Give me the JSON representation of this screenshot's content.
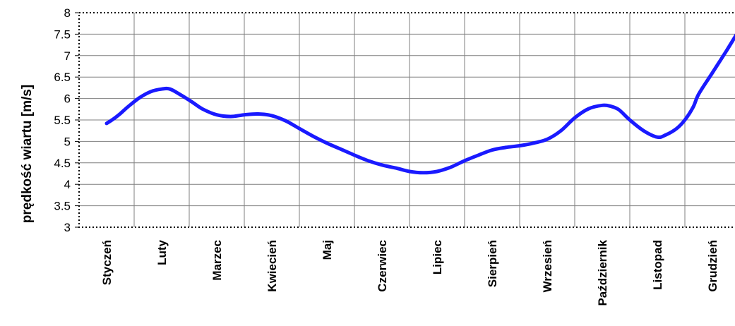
{
  "chart_data": {
    "type": "line",
    "title": "",
    "xlabel": "",
    "ylabel": "prędkość wiartu [m/s]",
    "categories": [
      "Styczeń",
      "Luty",
      "Marzec",
      "Kwiecień",
      "Maj",
      "Czerwiec",
      "Lipiec",
      "Sierpień",
      "Wrzesień",
      "Październik",
      "Listopad",
      "Grudzień"
    ],
    "ylim": [
      3,
      8
    ],
    "yticks": [
      "3",
      "3.5",
      "4",
      "4.5",
      "5",
      "5.5",
      "6",
      "6.5",
      "7",
      "7.5",
      "8"
    ],
    "grid": true,
    "legend": "none",
    "line_color": "#1a1aff",
    "series": [
      {
        "x": [
          0,
          0.12,
          0.25,
          0.4,
          0.6,
          0.8,
          1.0,
          1.15,
          1.35,
          1.55,
          1.75,
          2.0,
          2.25,
          2.5,
          2.75,
          3.0,
          3.25,
          3.5,
          3.75,
          4.0,
          4.25,
          4.5,
          4.75,
          5.0,
          5.25,
          5.5,
          5.75,
          6.0,
          6.25,
          6.5,
          6.75,
          7.0,
          7.25,
          7.5,
          7.75,
          8.0,
          8.25,
          8.5,
          8.75,
          9.0,
          9.15,
          9.3,
          9.5,
          9.75,
          10.0,
          10.15,
          10.35,
          10.5,
          10.65,
          10.75,
          11.0,
          11.25,
          11.45
        ],
        "values": [
          5.42,
          5.52,
          5.65,
          5.82,
          6.02,
          6.16,
          6.22,
          6.22,
          6.08,
          5.92,
          5.75,
          5.62,
          5.58,
          5.62,
          5.64,
          5.6,
          5.48,
          5.3,
          5.12,
          4.96,
          4.82,
          4.68,
          4.55,
          4.45,
          4.38,
          4.3,
          4.27,
          4.3,
          4.4,
          4.55,
          4.68,
          4.8,
          4.86,
          4.9,
          4.96,
          5.05,
          5.25,
          5.55,
          5.76,
          5.84,
          5.82,
          5.74,
          5.5,
          5.25,
          5.1,
          5.15,
          5.3,
          5.5,
          5.8,
          6.1,
          6.6,
          7.1,
          7.52
        ]
      }
    ]
  }
}
